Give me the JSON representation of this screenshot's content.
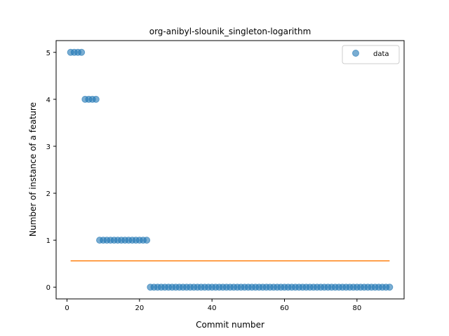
{
  "chart_data": {
    "type": "scatter",
    "title": "org-anibyl-slounik_singleton-logarithm",
    "xlabel": "Commit number",
    "ylabel": "Number of instance of a feature",
    "xlim": [
      -3,
      93
    ],
    "ylim": [
      -0.25,
      5.25
    ],
    "xticks": [
      0,
      20,
      40,
      60,
      80
    ],
    "yticks": [
      0,
      1,
      2,
      3,
      4,
      5
    ],
    "grid": false,
    "legend": {
      "placement": "top-right",
      "entries": [
        "data"
      ]
    },
    "series": [
      {
        "name": "data",
        "kind": "scatter",
        "color": "#1f77b4",
        "x": [
          1,
          2,
          3,
          4,
          5,
          6,
          7,
          8,
          9,
          10,
          11,
          12,
          13,
          14,
          15,
          16,
          17,
          18,
          19,
          20,
          21,
          22,
          23,
          24,
          25,
          26,
          27,
          28,
          29,
          30,
          31,
          32,
          33,
          34,
          35,
          36,
          37,
          38,
          39,
          40,
          41,
          42,
          43,
          44,
          45,
          46,
          47,
          48,
          49,
          50,
          51,
          52,
          53,
          54,
          55,
          56,
          57,
          58,
          59,
          60,
          61,
          62,
          63,
          64,
          65,
          66,
          67,
          68,
          69,
          70,
          71,
          72,
          73,
          74,
          75,
          76,
          77,
          78,
          79,
          80,
          81,
          82,
          83,
          84,
          85,
          86,
          87,
          88,
          89
        ],
        "y": [
          5,
          5,
          5,
          5,
          4,
          4,
          4,
          4,
          1,
          1,
          1,
          1,
          1,
          1,
          1,
          1,
          1,
          1,
          1,
          1,
          1,
          1,
          0,
          0,
          0,
          0,
          0,
          0,
          0,
          0,
          0,
          0,
          0,
          0,
          0,
          0,
          0,
          0,
          0,
          0,
          0,
          0,
          0,
          0,
          0,
          0,
          0,
          0,
          0,
          0,
          0,
          0,
          0,
          0,
          0,
          0,
          0,
          0,
          0,
          0,
          0,
          0,
          0,
          0,
          0,
          0,
          0,
          0,
          0,
          0,
          0,
          0,
          0,
          0,
          0,
          0,
          0,
          0,
          0,
          0,
          0,
          0,
          0,
          0,
          0,
          0,
          0,
          0,
          0
        ]
      },
      {
        "kind": "line",
        "color": "#ff7f0e",
        "x": [
          1,
          89
        ],
        "y": [
          0.56,
          0.56
        ]
      }
    ]
  }
}
